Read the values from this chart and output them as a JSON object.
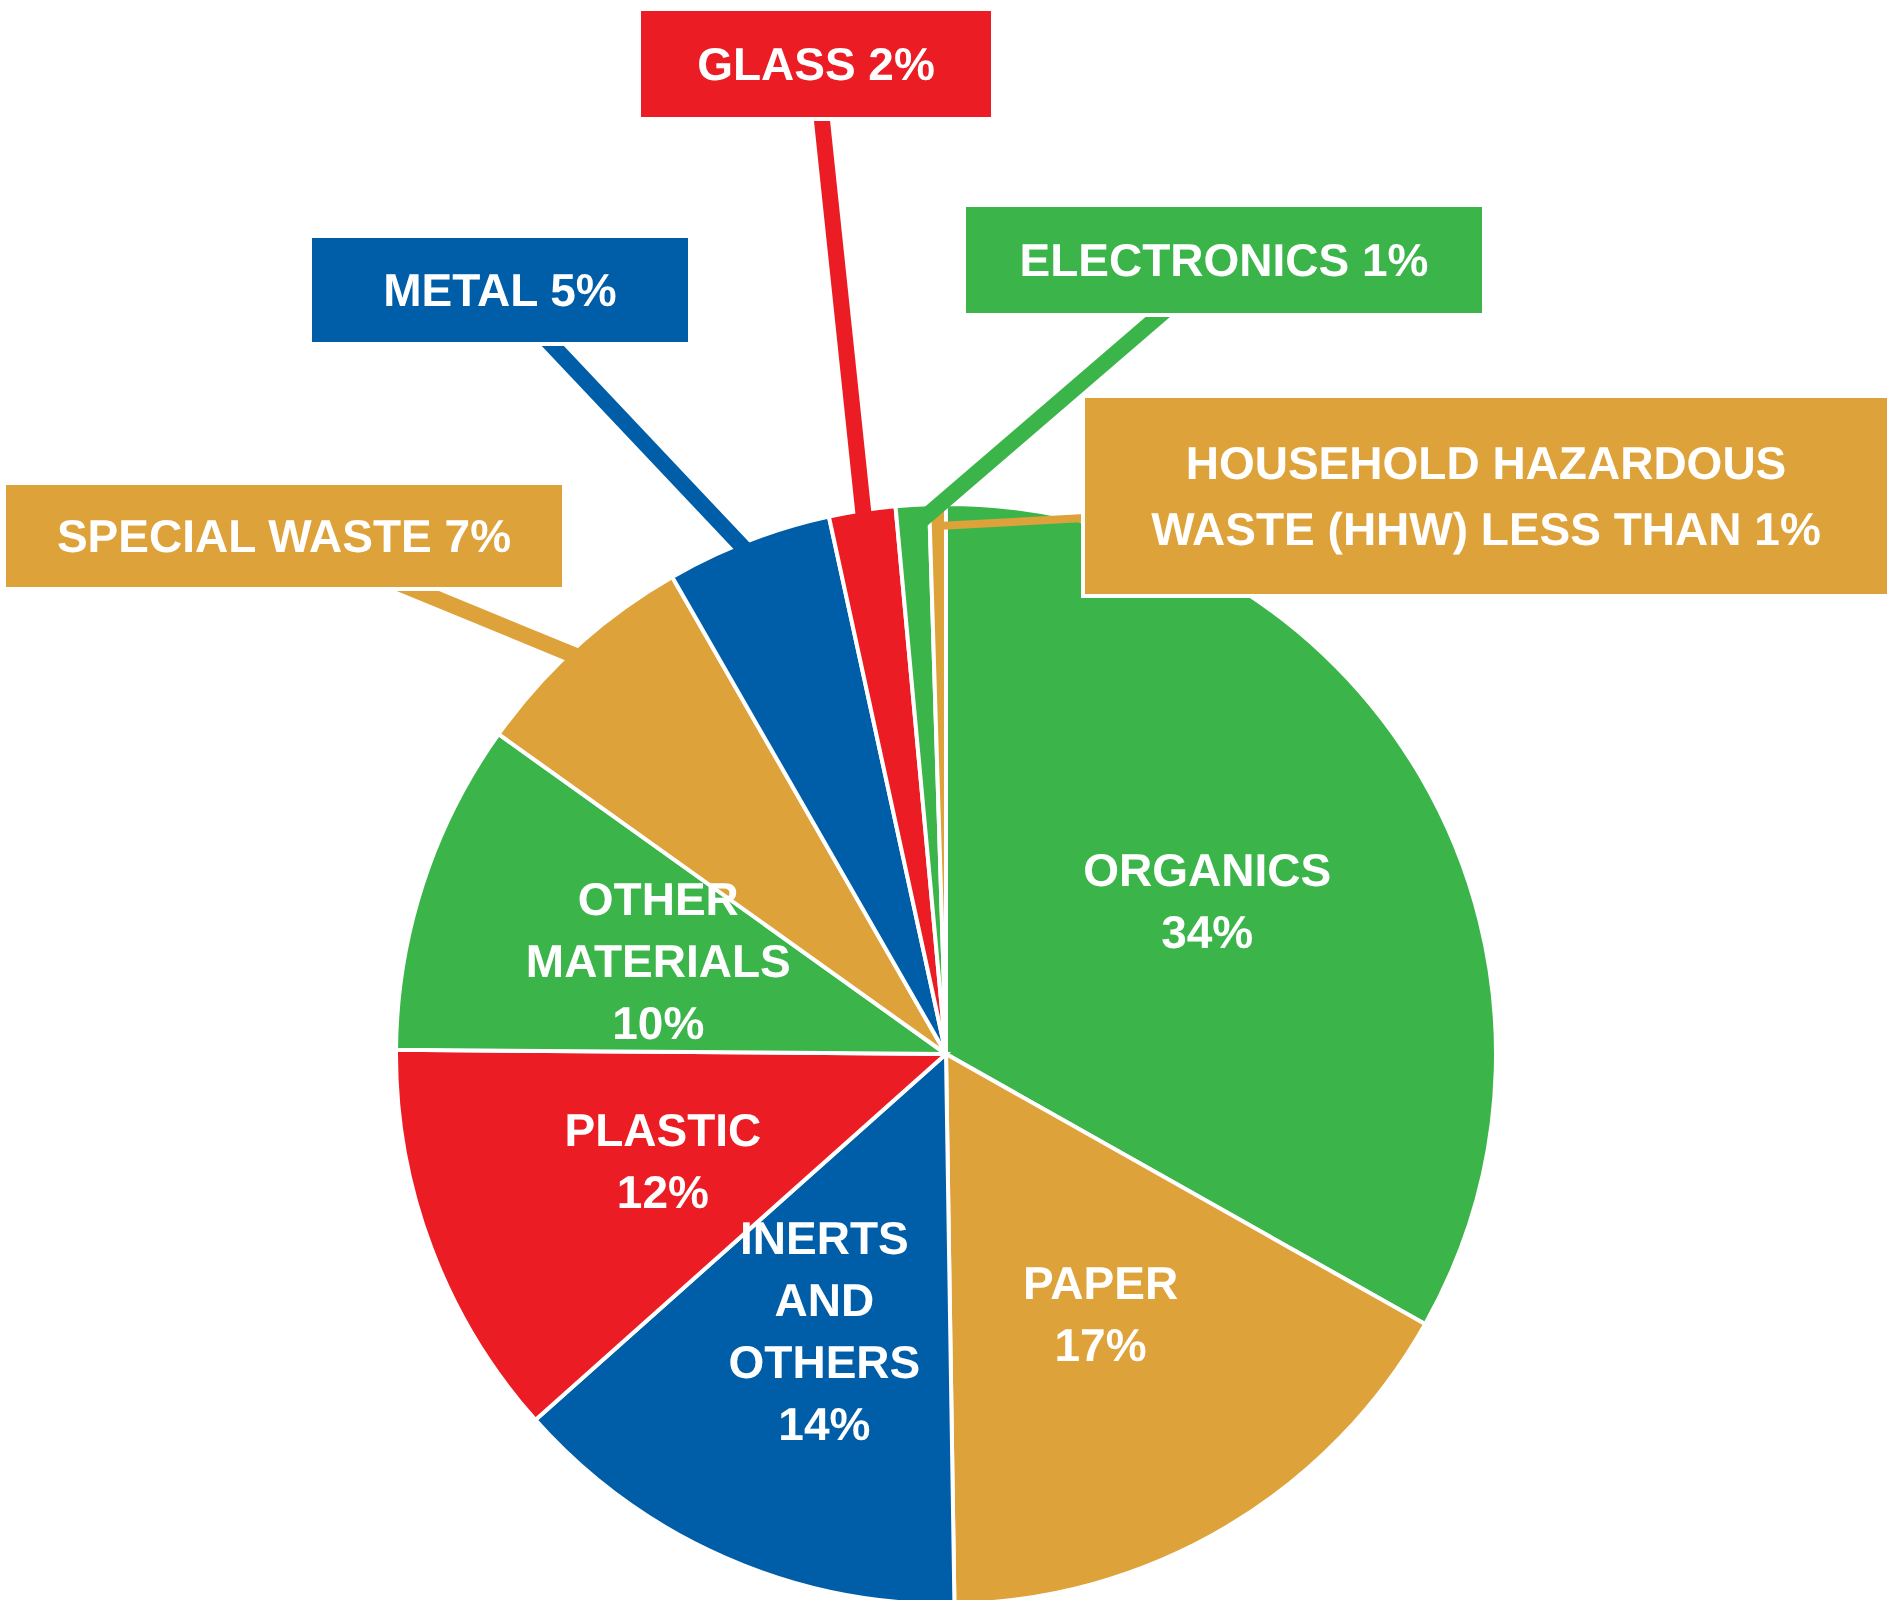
{
  "chart_data": {
    "type": "pie",
    "categories": [
      "ORGANICS",
      "PAPER",
      "INERTS AND OTHERS",
      "PLASTIC",
      "OTHER MATERIALS",
      "SPECIAL WASTE",
      "METAL",
      "GLASS",
      "ELECTRONICS",
      "HOUSEHOLD HAZARDOUS WASTE (HHW)"
    ],
    "values": [
      34,
      17,
      14,
      12,
      10,
      7,
      5,
      2,
      1,
      0.5
    ],
    "value_labels": [
      "34%",
      "17%",
      "14%",
      "12%",
      "10%",
      "7%",
      "5%",
      "2%",
      "1%",
      "LESS THAN 1%"
    ],
    "colors": [
      "#3bb54a",
      "#dea23a",
      "#005ea8",
      "#ec1c24",
      "#3bb54a",
      "#dea23a",
      "#005ea8",
      "#ec1c24",
      "#3bb54a",
      "#dea23a"
    ]
  }
}
